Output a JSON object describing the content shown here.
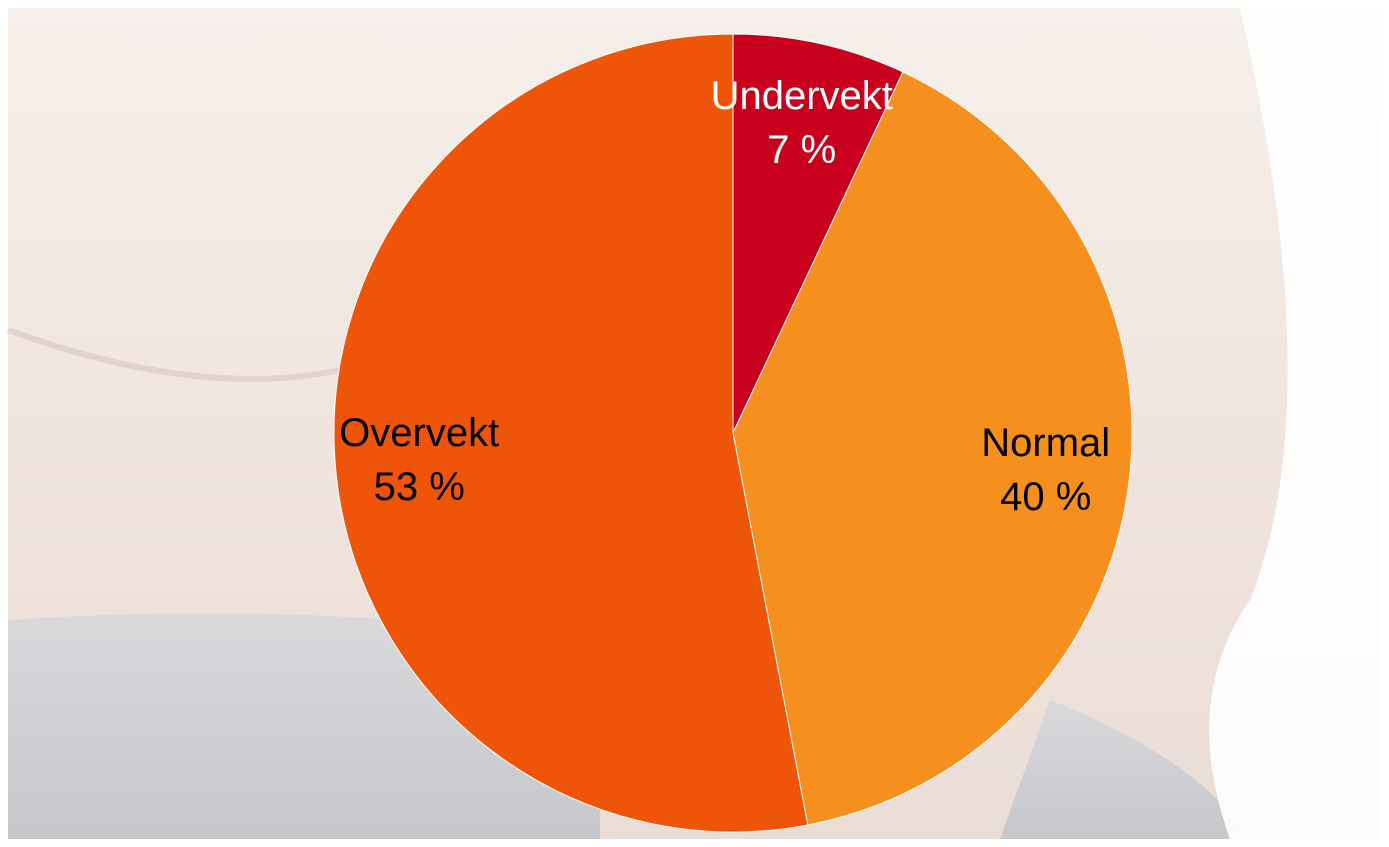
{
  "chart_data": {
    "type": "pie",
    "categories": [
      "Undervekt",
      "Normal",
      "Overvekt"
    ],
    "values": [
      7,
      40,
      53
    ],
    "value_labels": [
      "7 %",
      "40 %",
      "53 %"
    ],
    "colors": [
      "#c8001e",
      "#f5901e",
      "#ef5508"
    ]
  }
}
